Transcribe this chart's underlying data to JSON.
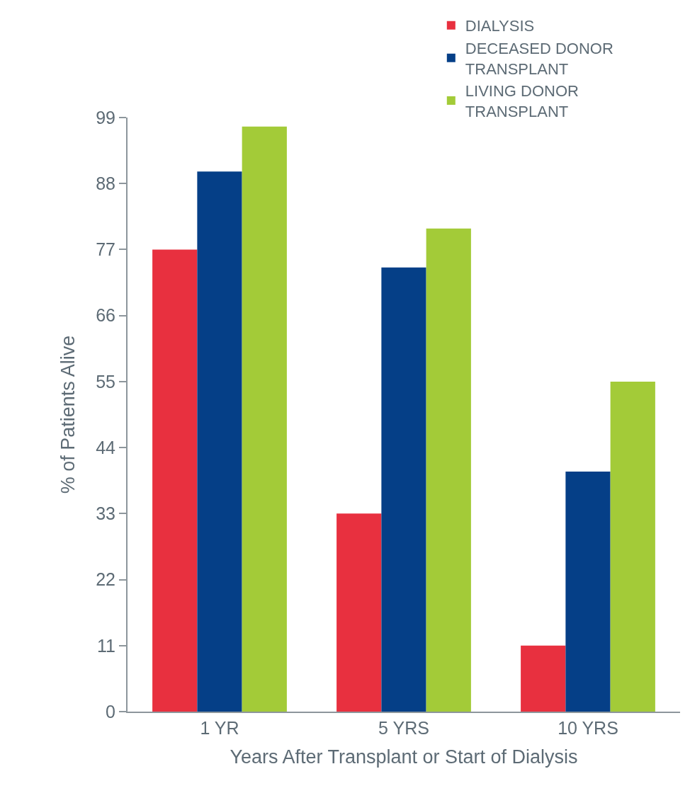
{
  "chart_data": {
    "type": "bar",
    "xlabel": "Years After Transplant or Start of Dialysis",
    "ylabel": "% of Patients Alive",
    "categories": [
      "1 YR",
      "5 YRS",
      "10 YRS"
    ],
    "series": [
      {
        "name": "DIALYSIS",
        "color": "#e8303f",
        "values": [
          77,
          33,
          11
        ]
      },
      {
        "name": "DECEASED DONOR TRANSPLANT",
        "color": "#053f87",
        "values": [
          90,
          74,
          40
        ]
      },
      {
        "name": "LIVING DONOR TRANSPLANT",
        "color": "#a3cb38",
        "values": [
          97.5,
          80.5,
          55
        ]
      }
    ],
    "ylim": [
      0,
      99
    ],
    "yticks": [
      0,
      11,
      22,
      33,
      44,
      55,
      66,
      77,
      88,
      99
    ],
    "grid": false,
    "legend": "top right"
  }
}
